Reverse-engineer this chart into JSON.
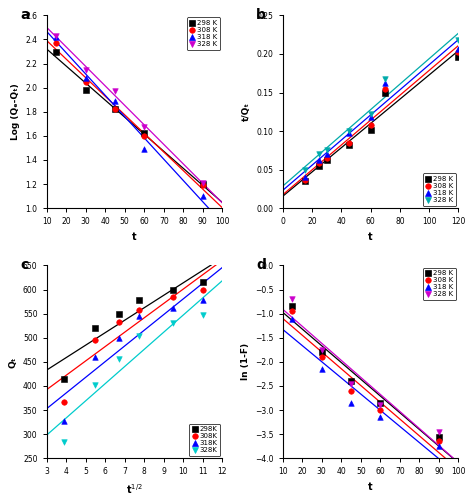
{
  "panel_a": {
    "label": "a",
    "xlabel": "t",
    "ylabel": "Log (Qₑ-Qₜ)",
    "xlim": [
      10,
      100
    ],
    "ylim": [
      1.0,
      2.6
    ],
    "yticks": [
      1.0,
      1.2,
      1.4,
      1.6,
      1.8,
      2.0,
      2.2,
      2.4,
      2.6
    ],
    "xticks": [
      10,
      20,
      30,
      40,
      50,
      60,
      70,
      80,
      90,
      100
    ],
    "series": [
      {
        "label": "298 K",
        "color": "black",
        "marker": "s",
        "x": [
          15,
          30,
          45,
          60,
          90
        ],
        "y": [
          2.3,
          1.98,
          1.82,
          1.62,
          1.2
        ]
      },
      {
        "label": "308 K",
        "color": "red",
        "marker": "o",
        "x": [
          15,
          30,
          45,
          60,
          90
        ],
        "y": [
          2.37,
          2.05,
          1.82,
          1.6,
          1.19
        ]
      },
      {
        "label": "318 K",
        "color": "blue",
        "marker": "^",
        "x": [
          15,
          30,
          45,
          60,
          90
        ],
        "y": [
          2.42,
          2.08,
          1.89,
          1.49,
          1.1
        ]
      },
      {
        "label": "328 K",
        "color": "#cc00cc",
        "marker": "v",
        "x": [
          15,
          30,
          45,
          60,
          90
        ],
        "y": [
          2.43,
          2.15,
          1.97,
          1.67,
          1.21
        ]
      }
    ],
    "fit_colors": [
      "black",
      "red",
      "blue",
      "#cc00cc"
    ],
    "legend_loc": "upper right",
    "fit_xlim": [
      10,
      100
    ]
  },
  "panel_b": {
    "label": "b",
    "xlabel": "t",
    "ylabel": "t/Qₜ",
    "xlim": [
      0,
      120
    ],
    "ylim": [
      0.0,
      0.25
    ],
    "yticks": [
      0.0,
      0.05,
      0.1,
      0.15,
      0.2,
      0.25
    ],
    "xticks": [
      0,
      20,
      40,
      60,
      80,
      100,
      120
    ],
    "series": [
      {
        "label": "298 K",
        "color": "black",
        "marker": "s",
        "x": [
          15,
          25,
          30,
          45,
          60,
          70,
          120
        ],
        "y": [
          0.035,
          0.055,
          0.062,
          0.082,
          0.102,
          0.15,
          0.196
        ]
      },
      {
        "label": "308 K",
        "color": "red",
        "marker": "o",
        "x": [
          15,
          25,
          30,
          45,
          60,
          70,
          120
        ],
        "y": [
          0.037,
          0.058,
          0.065,
          0.085,
          0.108,
          0.155,
          0.202
        ]
      },
      {
        "label": "318 K",
        "color": "blue",
        "marker": "^",
        "x": [
          15,
          25,
          30,
          45,
          60,
          70,
          120
        ],
        "y": [
          0.04,
          0.062,
          0.07,
          0.097,
          0.118,
          0.162,
          0.207
        ]
      },
      {
        "label": "328 K",
        "color": "#00aaaa",
        "marker": "v",
        "x": [
          15,
          25,
          30,
          45,
          60,
          70,
          120
        ],
        "y": [
          0.049,
          0.07,
          0.076,
          0.1,
          0.122,
          0.168,
          0.218
        ]
      }
    ],
    "fit_colors": [
      "black",
      "red",
      "blue",
      "#00aaaa"
    ],
    "legend_loc": "lower right",
    "fit_xlim": [
      0,
      120
    ]
  },
  "panel_c": {
    "label": "c",
    "xlabel": "t¹ᐟ²",
    "ylabel": "Qₜ",
    "xlim": [
      3,
      12
    ],
    "ylim": [
      250,
      650
    ],
    "yticks": [
      250,
      300,
      350,
      400,
      450,
      500,
      550,
      600,
      650
    ],
    "xticks": [
      3,
      4,
      5,
      6,
      7,
      8,
      9,
      10,
      11,
      12
    ],
    "series": [
      {
        "label": "298K",
        "color": "black",
        "marker": "s",
        "x": [
          3.87,
          5.48,
          6.71,
          7.75,
          9.49,
          11.0
        ],
        "y": [
          415,
          520,
          550,
          578,
          600,
          615
        ]
      },
      {
        "label": "308K",
        "color": "red",
        "marker": "o",
        "x": [
          3.87,
          5.48,
          6.71,
          7.75,
          9.49,
          11.0
        ],
        "y": [
          367,
          495,
          533,
          558,
          585,
          600
        ]
      },
      {
        "label": "318K",
        "color": "blue",
        "marker": "^",
        "x": [
          3.87,
          5.48,
          6.71,
          7.75,
          9.49,
          11.0
        ],
        "y": [
          328,
          460,
          500,
          545,
          562,
          578
        ]
      },
      {
        "label": "328K",
        "color": "#00cccc",
        "marker": "v",
        "x": [
          3.87,
          5.48,
          6.71,
          7.75,
          9.49,
          11.0
        ],
        "y": [
          283,
          403,
          457,
          503,
          530,
          548
        ]
      }
    ],
    "fit_colors": [
      "black",
      "red",
      "blue",
      "#00cccc"
    ],
    "legend_loc": "lower right",
    "fit_xlim": [
      3,
      12
    ]
  },
  "panel_d": {
    "label": "d",
    "xlabel": "t",
    "ylabel": "ln (1-F)",
    "xlim": [
      10,
      100
    ],
    "ylim": [
      -4.0,
      0.0
    ],
    "yticks": [
      -4.0,
      -3.5,
      -3.0,
      -2.5,
      -2.0,
      -1.5,
      -1.0,
      -0.5,
      0.0
    ],
    "xticks": [
      10,
      20,
      30,
      40,
      50,
      60,
      70,
      80,
      90,
      100
    ],
    "series": [
      {
        "label": "298 K",
        "color": "black",
        "marker": "s",
        "x": [
          15,
          30,
          45,
          60,
          90
        ],
        "y": [
          -0.85,
          -1.8,
          -2.4,
          -2.85,
          -3.55
        ]
      },
      {
        "label": "308 K",
        "color": "red",
        "marker": "o",
        "x": [
          15,
          30,
          45,
          60,
          90
        ],
        "y": [
          -0.95,
          -1.9,
          -2.6,
          -3.0,
          -3.65
        ]
      },
      {
        "label": "318 K",
        "color": "blue",
        "marker": "^",
        "x": [
          15,
          30,
          45,
          60,
          90
        ],
        "y": [
          -1.1,
          -2.15,
          -2.85,
          -3.15,
          -3.75
        ]
      },
      {
        "label": "328 K",
        "color": "#cc00cc",
        "marker": "v",
        "x": [
          15,
          30,
          45,
          60,
          90
        ],
        "y": [
          -0.7,
          -1.75,
          -2.45,
          -2.9,
          -3.45
        ]
      }
    ],
    "fit_colors": [
      "black",
      "red",
      "blue",
      "#cc00cc"
    ],
    "legend_loc": "upper right",
    "fit_xlim": [
      10,
      100
    ]
  }
}
